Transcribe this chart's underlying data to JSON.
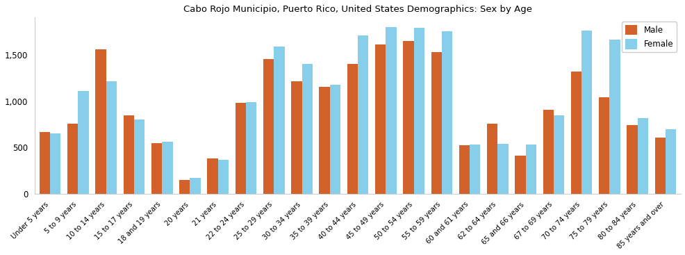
{
  "title": "Cabo Rojo Municipio, Puerto Rico, United States Demographics: Sex by Age",
  "categories": [
    "Under 5 years",
    "5 to 9 years",
    "10 to 14 years",
    "15 to 17 years",
    "18 and 19 years",
    "20 years",
    "21 years",
    "22 to 24 years",
    "25 to 29 years",
    "30 to 34 years",
    "35 to 39 years",
    "40 to 44 years",
    "45 to 49 years",
    "50 to 54 years",
    "55 to 59 years",
    "60 and 61 years",
    "62 to 64 years",
    "65 and 66 years",
    "67 to 69 years",
    "70 to 74 years",
    "75 to 79 years",
    "80 to 84 years",
    "85 years and over"
  ],
  "male": [
    670,
    755,
    1560,
    845,
    550,
    155,
    380,
    985,
    1450,
    1215,
    1155,
    1400,
    1610,
    1645,
    1530,
    525,
    755,
    415,
    910,
    1315,
    1045,
    745,
    605
  ],
  "female": [
    655,
    1110,
    1215,
    800,
    560,
    175,
    365,
    990,
    1590,
    1400,
    1175,
    1705,
    1800,
    1790,
    1755,
    535,
    540,
    530,
    850,
    1760,
    1660,
    820,
    695
  ],
  "male_color": "#d2622a",
  "female_color": "#87ceeb",
  "ylim": [
    0,
    1900
  ],
  "yticks": [
    0,
    500,
    1000,
    1500
  ],
  "bar_width": 0.38,
  "figsize": [
    9.87,
    3.67
  ],
  "dpi": 100,
  "bg_color": "#ffffff",
  "legend_labels": [
    "Male",
    "Female"
  ]
}
